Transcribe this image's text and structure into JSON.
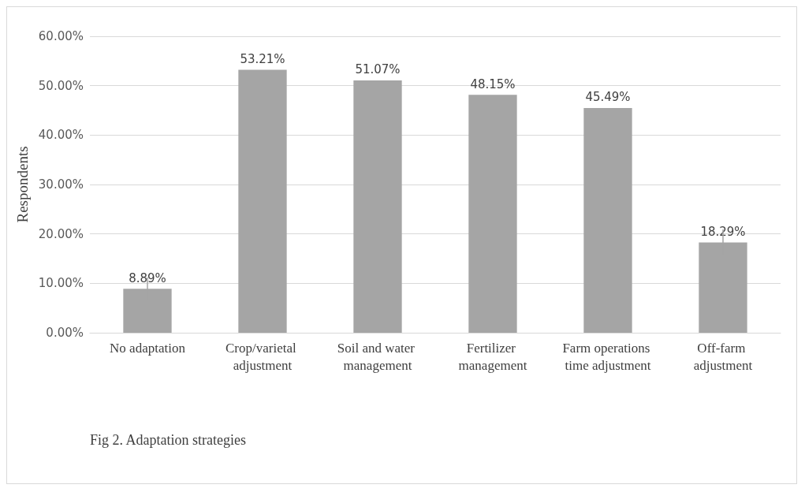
{
  "chart_data": {
    "type": "bar",
    "ylabel": "Respondents",
    "categories": [
      "No adaptation",
      "Crop/varietal adjustment",
      "Soil and water management",
      "Fertilizer management",
      "Farm operations time adjustment",
      "Off-farm adjustment"
    ],
    "values": [
      8.89,
      53.21,
      51.07,
      48.15,
      45.49,
      18.29
    ],
    "value_labels": [
      "8.89%",
      "53.21%",
      "51.07%",
      "48.15%",
      "45.49%",
      "18.29%"
    ],
    "errors": [
      2.3,
      null,
      null,
      null,
      null,
      2.6
    ],
    "color": "#a5a5a5",
    "ylim": [
      0,
      60
    ],
    "yticks": [
      {
        "value": 0,
        "label": "0.00%"
      },
      {
        "value": 10,
        "label": "10.00%"
      },
      {
        "value": 20,
        "label": "20.00%"
      },
      {
        "value": 30,
        "label": "30.00%"
      },
      {
        "value": 40,
        "label": "40.00%"
      },
      {
        "value": 50,
        "label": "50.00%"
      },
      {
        "value": 60,
        "label": "60.00%"
      }
    ],
    "grid": "y",
    "annotations": [
      "Fig 2. Adaptation strategies"
    ]
  }
}
